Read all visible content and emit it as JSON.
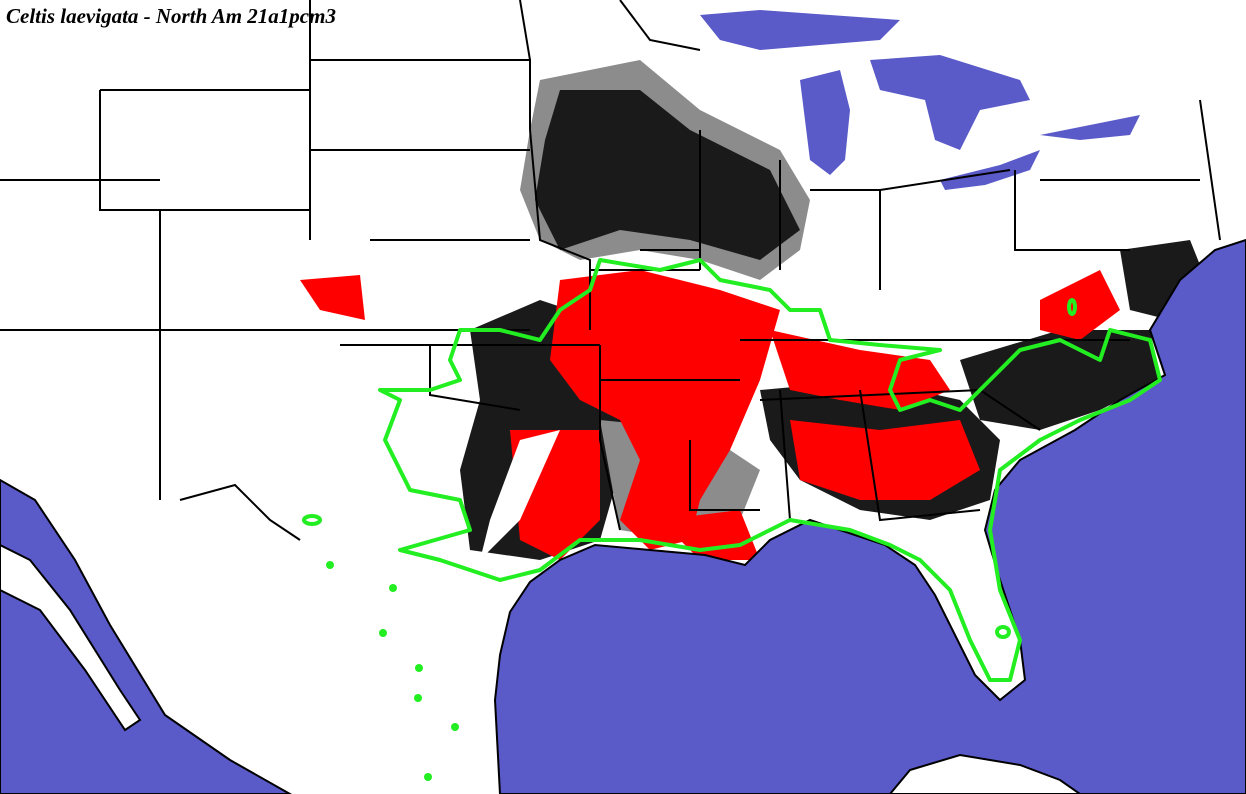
{
  "title": "Celtis laevigata - North Am 21a1pcm3"
}
